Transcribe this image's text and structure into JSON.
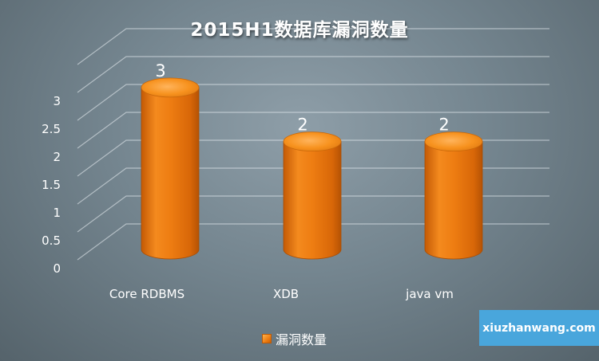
{
  "chart_data": {
    "type": "bar",
    "style": "3d-cylinder",
    "title": "2015H1数据库漏洞数量",
    "categories": [
      "Core RDBMS",
      "XDB",
      "java vm"
    ],
    "series": [
      {
        "name": "漏洞数量",
        "values": [
          3,
          2,
          2
        ],
        "color": "#ee7d12"
      }
    ],
    "data_labels": [
      "3",
      "2",
      "2"
    ],
    "y_ticks": [
      "0",
      "0.5",
      "1",
      "1.5",
      "2",
      "2.5",
      "3"
    ],
    "ylim": [
      0,
      3.5
    ],
    "grid": true,
    "legend_position": "bottom"
  },
  "watermark": {
    "text": "xiuzhanwang.com",
    "color": "#49a6dc"
  }
}
